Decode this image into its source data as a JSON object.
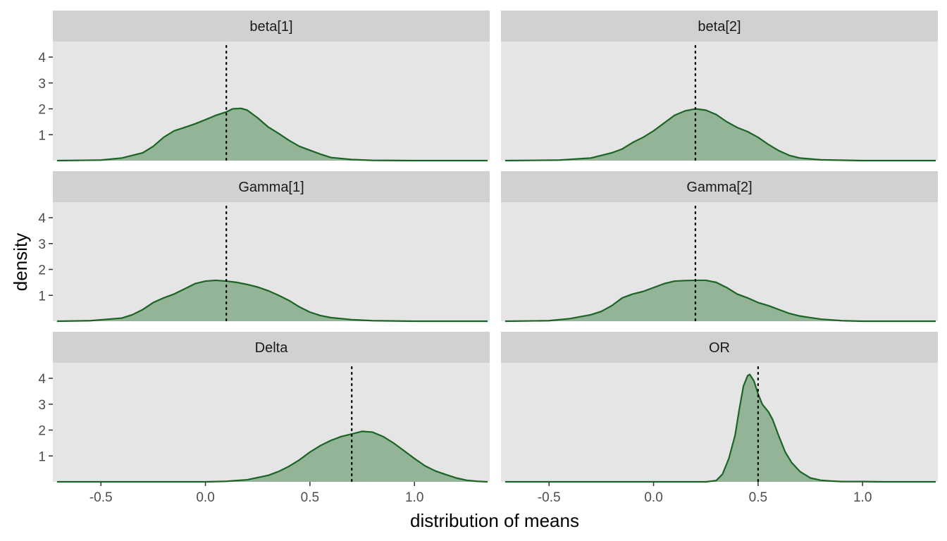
{
  "chart_data": {
    "type": "area",
    "xlabel": "distribution of means",
    "ylabel": "density",
    "xlim": [
      -0.73,
      1.36
    ],
    "ylim": [
      0,
      4.6
    ],
    "x_ticks": [
      -0.5,
      0.0,
      0.5,
      1.0
    ],
    "x_tick_labels": [
      "-0.5",
      "0.0",
      "0.5",
      "1.0"
    ],
    "y_ticks": [
      1,
      2,
      3,
      4
    ],
    "y_tick_labels": [
      "1",
      "2",
      "3",
      "4"
    ],
    "grid": false,
    "colors": {
      "fill": "#93b496",
      "line": "#1b6425",
      "panel_bg": "#e5e5e5",
      "strip_bg": "#d1d1d1"
    },
    "panels": [
      {
        "label": "beta[1]",
        "reference_line": 0.1,
        "density": [
          [
            -0.71,
            0.0
          ],
          [
            -0.5,
            0.02
          ],
          [
            -0.4,
            0.1
          ],
          [
            -0.3,
            0.3
          ],
          [
            -0.25,
            0.55
          ],
          [
            -0.2,
            0.9
          ],
          [
            -0.15,
            1.15
          ],
          [
            -0.1,
            1.28
          ],
          [
            -0.05,
            1.42
          ],
          [
            0.0,
            1.58
          ],
          [
            0.05,
            1.75
          ],
          [
            0.1,
            1.88
          ],
          [
            0.13,
            2.0
          ],
          [
            0.17,
            2.02
          ],
          [
            0.2,
            1.95
          ],
          [
            0.25,
            1.65
          ],
          [
            0.3,
            1.3
          ],
          [
            0.35,
            1.05
          ],
          [
            0.4,
            0.78
          ],
          [
            0.45,
            0.55
          ],
          [
            0.5,
            0.4
          ],
          [
            0.55,
            0.25
          ],
          [
            0.6,
            0.12
          ],
          [
            0.7,
            0.04
          ],
          [
            0.8,
            0.01
          ],
          [
            1.0,
            0.0
          ],
          [
            1.35,
            0.0
          ]
        ]
      },
      {
        "label": "beta[2]",
        "reference_line": 0.2,
        "density": [
          [
            -0.71,
            0.0
          ],
          [
            -0.45,
            0.02
          ],
          [
            -0.3,
            0.1
          ],
          [
            -0.2,
            0.3
          ],
          [
            -0.15,
            0.45
          ],
          [
            -0.1,
            0.7
          ],
          [
            -0.05,
            0.9
          ],
          [
            0.0,
            1.15
          ],
          [
            0.05,
            1.45
          ],
          [
            0.1,
            1.75
          ],
          [
            0.15,
            1.92
          ],
          [
            0.2,
            2.0
          ],
          [
            0.25,
            1.95
          ],
          [
            0.3,
            1.78
          ],
          [
            0.35,
            1.5
          ],
          [
            0.4,
            1.28
          ],
          [
            0.45,
            1.12
          ],
          [
            0.5,
            0.9
          ],
          [
            0.55,
            0.62
          ],
          [
            0.6,
            0.38
          ],
          [
            0.65,
            0.2
          ],
          [
            0.7,
            0.1
          ],
          [
            0.8,
            0.03
          ],
          [
            1.0,
            0.0
          ],
          [
            1.35,
            0.0
          ]
        ]
      },
      {
        "label": "Gamma[1]",
        "reference_line": 0.1,
        "density": [
          [
            -0.71,
            0.0
          ],
          [
            -0.55,
            0.02
          ],
          [
            -0.4,
            0.12
          ],
          [
            -0.35,
            0.25
          ],
          [
            -0.3,
            0.45
          ],
          [
            -0.25,
            0.72
          ],
          [
            -0.2,
            0.9
          ],
          [
            -0.15,
            1.05
          ],
          [
            -0.1,
            1.25
          ],
          [
            -0.05,
            1.45
          ],
          [
            0.0,
            1.55
          ],
          [
            0.05,
            1.58
          ],
          [
            0.1,
            1.55
          ],
          [
            0.15,
            1.5
          ],
          [
            0.2,
            1.42
          ],
          [
            0.25,
            1.32
          ],
          [
            0.3,
            1.18
          ],
          [
            0.35,
            1.0
          ],
          [
            0.4,
            0.8
          ],
          [
            0.45,
            0.55
          ],
          [
            0.5,
            0.35
          ],
          [
            0.55,
            0.22
          ],
          [
            0.6,
            0.14
          ],
          [
            0.7,
            0.06
          ],
          [
            0.8,
            0.02
          ],
          [
            1.0,
            0.0
          ],
          [
            1.35,
            0.0
          ]
        ]
      },
      {
        "label": "Gamma[2]",
        "reference_line": 0.2,
        "density": [
          [
            -0.71,
            0.0
          ],
          [
            -0.5,
            0.02
          ],
          [
            -0.4,
            0.1
          ],
          [
            -0.3,
            0.25
          ],
          [
            -0.25,
            0.38
          ],
          [
            -0.2,
            0.6
          ],
          [
            -0.15,
            0.9
          ],
          [
            -0.1,
            1.05
          ],
          [
            -0.05,
            1.15
          ],
          [
            0.0,
            1.3
          ],
          [
            0.05,
            1.45
          ],
          [
            0.1,
            1.55
          ],
          [
            0.15,
            1.57
          ],
          [
            0.2,
            1.58
          ],
          [
            0.25,
            1.58
          ],
          [
            0.3,
            1.5
          ],
          [
            0.35,
            1.3
          ],
          [
            0.4,
            1.05
          ],
          [
            0.45,
            0.9
          ],
          [
            0.5,
            0.72
          ],
          [
            0.55,
            0.6
          ],
          [
            0.6,
            0.45
          ],
          [
            0.65,
            0.3
          ],
          [
            0.7,
            0.2
          ],
          [
            0.8,
            0.08
          ],
          [
            0.9,
            0.02
          ],
          [
            1.0,
            0.0
          ],
          [
            1.35,
            0.0
          ]
        ]
      },
      {
        "label": "Delta",
        "reference_line": 0.7,
        "density": [
          [
            -0.71,
            0.0
          ],
          [
            0.0,
            0.0
          ],
          [
            0.1,
            0.02
          ],
          [
            0.2,
            0.08
          ],
          [
            0.3,
            0.25
          ],
          [
            0.35,
            0.4
          ],
          [
            0.4,
            0.6
          ],
          [
            0.45,
            0.85
          ],
          [
            0.5,
            1.15
          ],
          [
            0.55,
            1.4
          ],
          [
            0.6,
            1.6
          ],
          [
            0.65,
            1.75
          ],
          [
            0.7,
            1.85
          ],
          [
            0.75,
            1.95
          ],
          [
            0.8,
            1.92
          ],
          [
            0.85,
            1.75
          ],
          [
            0.9,
            1.5
          ],
          [
            0.95,
            1.2
          ],
          [
            1.0,
            0.9
          ],
          [
            1.05,
            0.62
          ],
          [
            1.1,
            0.42
          ],
          [
            1.15,
            0.28
          ],
          [
            1.2,
            0.15
          ],
          [
            1.25,
            0.06
          ],
          [
            1.3,
            0.02
          ],
          [
            1.35,
            0.0
          ]
        ]
      },
      {
        "label": "OR",
        "reference_line": 0.5,
        "density": [
          [
            -0.71,
            0.0
          ],
          [
            0.25,
            0.0
          ],
          [
            0.3,
            0.05
          ],
          [
            0.33,
            0.3
          ],
          [
            0.36,
            0.9
          ],
          [
            0.39,
            1.8
          ],
          [
            0.41,
            2.8
          ],
          [
            0.43,
            3.7
          ],
          [
            0.45,
            4.1
          ],
          [
            0.46,
            4.15
          ],
          [
            0.48,
            3.9
          ],
          [
            0.5,
            3.4
          ],
          [
            0.52,
            3.0
          ],
          [
            0.55,
            2.7
          ],
          [
            0.57,
            2.4
          ],
          [
            0.6,
            1.75
          ],
          [
            0.63,
            1.15
          ],
          [
            0.66,
            0.75
          ],
          [
            0.7,
            0.4
          ],
          [
            0.75,
            0.15
          ],
          [
            0.8,
            0.06
          ],
          [
            0.85,
            0.03
          ],
          [
            0.9,
            0.01
          ],
          [
            1.0,
            0.01
          ],
          [
            1.1,
            0.0
          ],
          [
            1.35,
            0.0
          ]
        ]
      }
    ]
  }
}
